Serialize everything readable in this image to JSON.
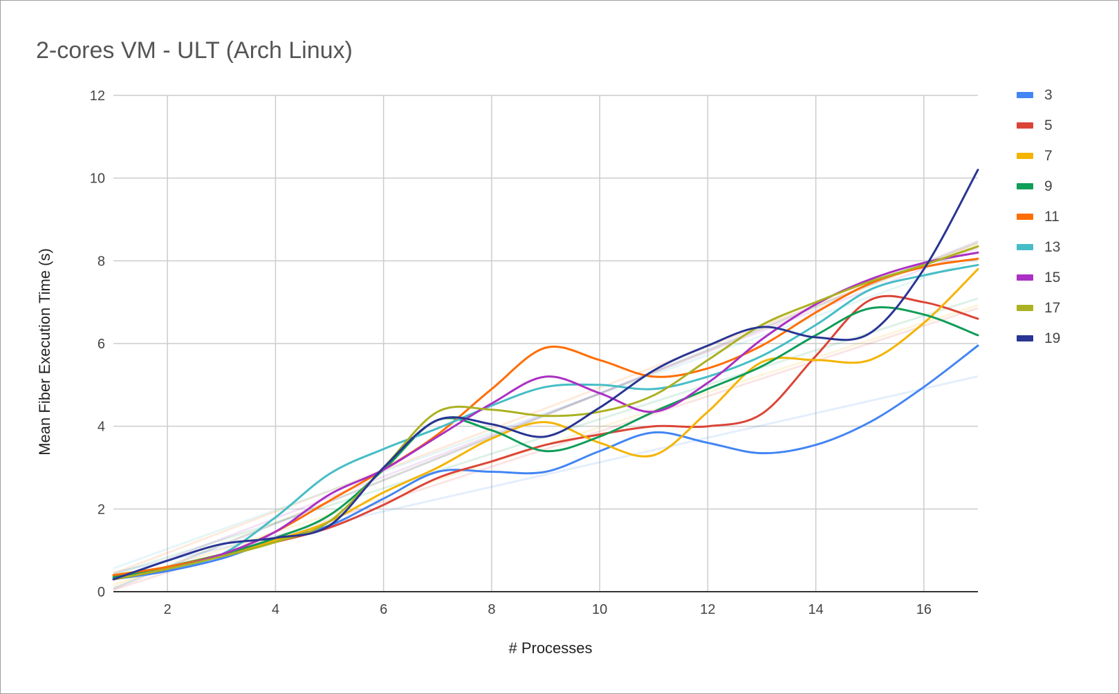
{
  "chart_data": {
    "type": "line",
    "title": "2-cores VM - ULT (Arch Linux)",
    "xlabel": "# Processes",
    "ylabel": "Mean Fiber Execution Time (s)",
    "xlim": [
      1,
      17
    ],
    "ylim": [
      0,
      12
    ],
    "x_ticks": [
      2,
      4,
      6,
      8,
      10,
      12,
      14,
      16
    ],
    "y_ticks": [
      0,
      2,
      4,
      6,
      8,
      10,
      12
    ],
    "grid": true,
    "legend_position": "right",
    "trendlines": true,
    "x": [
      1,
      2,
      3,
      4,
      5,
      6,
      7,
      8,
      9,
      10,
      11,
      12,
      13,
      14,
      15,
      16,
      17
    ],
    "series": [
      {
        "name": "3",
        "color": "#4285f4",
        "values": [
          0.3,
          0.5,
          0.8,
          1.25,
          1.6,
          2.25,
          2.9,
          2.9,
          2.9,
          3.4,
          3.85,
          3.6,
          3.35,
          3.55,
          4.1,
          4.95,
          5.95
        ]
      },
      {
        "name": "5",
        "color": "#db4437",
        "values": [
          0.4,
          0.6,
          0.9,
          1.2,
          1.55,
          2.1,
          2.75,
          3.15,
          3.55,
          3.8,
          4.0,
          4.0,
          4.3,
          5.7,
          7.05,
          7.0,
          6.6
        ]
      },
      {
        "name": "7",
        "color": "#f4b400",
        "values": [
          0.4,
          0.6,
          0.9,
          1.25,
          1.7,
          2.4,
          3.0,
          3.7,
          4.1,
          3.6,
          3.3,
          4.35,
          5.55,
          5.6,
          5.6,
          6.5,
          7.8
        ]
      },
      {
        "name": "9",
        "color": "#0f9d58",
        "values": [
          0.35,
          0.6,
          0.9,
          1.3,
          1.85,
          2.95,
          4.15,
          3.9,
          3.4,
          3.75,
          4.35,
          4.9,
          5.45,
          6.2,
          6.85,
          6.7,
          6.2
        ]
      },
      {
        "name": "11",
        "color": "#ff6d00",
        "values": [
          0.4,
          0.6,
          0.9,
          1.45,
          2.2,
          2.95,
          3.8,
          4.9,
          5.9,
          5.6,
          5.2,
          5.4,
          5.95,
          6.75,
          7.45,
          7.85,
          8.05
        ]
      },
      {
        "name": "13",
        "color": "#46bdc6",
        "values": [
          0.3,
          0.55,
          0.9,
          1.8,
          2.85,
          3.45,
          3.95,
          4.5,
          4.95,
          5.0,
          4.9,
          5.2,
          5.7,
          6.45,
          7.3,
          7.65,
          7.9
        ]
      },
      {
        "name": "15",
        "color": "#ab30c4",
        "values": [
          0.3,
          0.55,
          0.9,
          1.45,
          2.35,
          2.95,
          3.75,
          4.55,
          5.2,
          4.8,
          4.35,
          5.05,
          6.1,
          6.95,
          7.55,
          7.95,
          8.2
        ]
      },
      {
        "name": "17",
        "color": "#abb121",
        "values": [
          0.3,
          0.55,
          0.85,
          1.2,
          1.7,
          3.0,
          4.35,
          4.4,
          4.25,
          4.35,
          4.75,
          5.6,
          6.45,
          7.0,
          7.5,
          7.9,
          8.35
        ]
      },
      {
        "name": "19",
        "color": "#283593",
        "values": [
          0.3,
          0.75,
          1.15,
          1.3,
          1.6,
          3.0,
          4.15,
          4.05,
          3.75,
          4.45,
          5.35,
          5.95,
          6.4,
          6.15,
          6.25,
          7.8,
          10.2
        ]
      }
    ]
  }
}
